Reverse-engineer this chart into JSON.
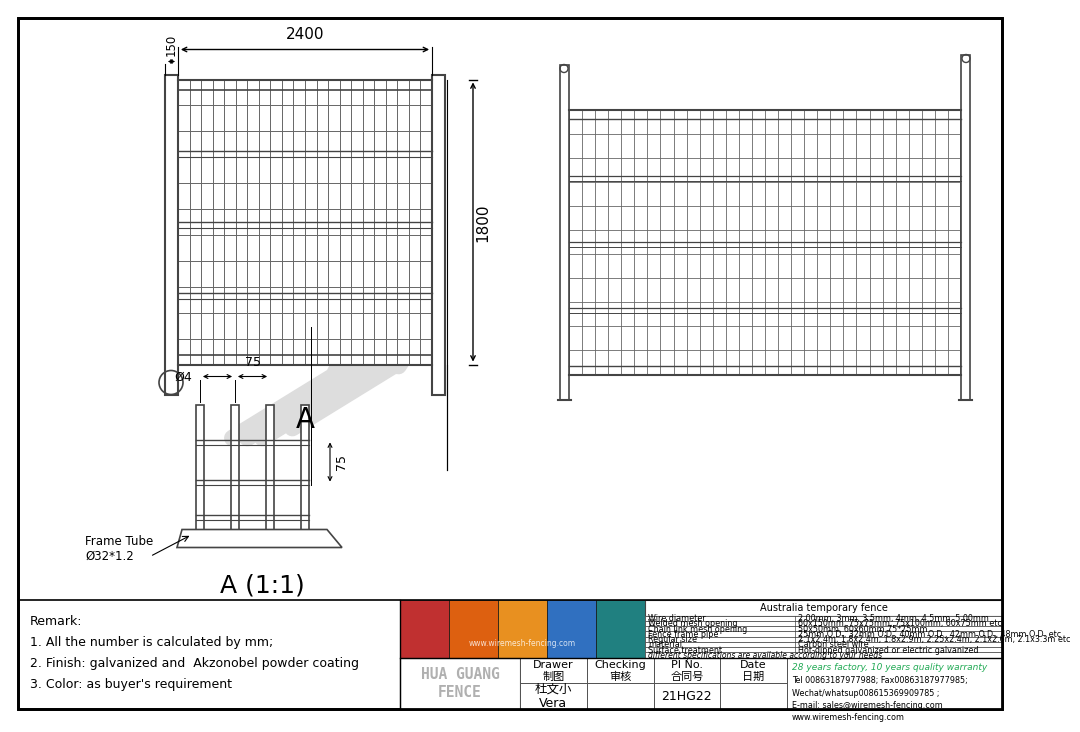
{
  "bg_color": "#ffffff",
  "lc": "#444444",
  "gc": "#666666",
  "title": "Australia temporary fence",
  "spec_rows": [
    [
      "Wire diameter",
      "2.00mm, 3mm, 3.5mm, 4mm, 4.5mm, 5.00mm"
    ],
    [
      "Welded mesh opening",
      "60x150mm, 75x75mm, 75x100mm, 60x75mm etc"
    ],
    [
      "Chain link mesh opening",
      "50x50mm, 60x60mm,75*75mm"
    ],
    [
      "Fence frame pipe",
      "25mm O.D., 32mm O.D., 40mm O.D., 42mm O.D., 48mm O.D. etc"
    ],
    [
      "Regular size",
      "2.1x2.4m, 1.8x2.4m, 1.8x2.9m, 2.25x2.4m, 2.1x2.6m, 2.1x3.3m etc"
    ],
    [
      "material",
      "Carbon steel wire"
    ],
    [
      "Surface treatment",
      "Hot-dipped galvanized or electric galvanized"
    ],
    [
      "different specifications are available according to your needs",
      ""
    ]
  ],
  "footer_cols": [
    "Drawer\n制图",
    "Checking\n审核",
    "PI No.\n合同号",
    "Date\n日期"
  ],
  "footer_row2": [
    "杜文小\nVera",
    "",
    "21HG22",
    ""
  ],
  "company_name": "HUA GUANG\nFENCE",
  "tagline": "28 years factory, 10 years quality warranty",
  "contact": "Tel 00863187977988; Fax00863187977985;\nWechat/whatsup008615369909785 ;\nE-mail: sales@wiremesh-fencing.com\nwww.wiremesh-fencing.com",
  "remarks": "Remark:\n1. All the number is calculated by mm;\n2. Finish: galvanized and  Akzonobel powder coating\n3. Color: as buyer's requirement",
  "dim_2400": "2400",
  "dim_150": "150",
  "dim_1800": "1800",
  "dim_phi4": "Ø4",
  "dim_75a": "75",
  "dim_75b": "75",
  "frame_tube": "Frame Tube\nØ32*1.2",
  "section_label_A": "A",
  "section_label_A11": "A (1:1)",
  "photo_colors": [
    "#c03030",
    "#dd6010",
    "#e89020",
    "#3070c0",
    "#208080"
  ],
  "watermark_color": "#dddddd"
}
